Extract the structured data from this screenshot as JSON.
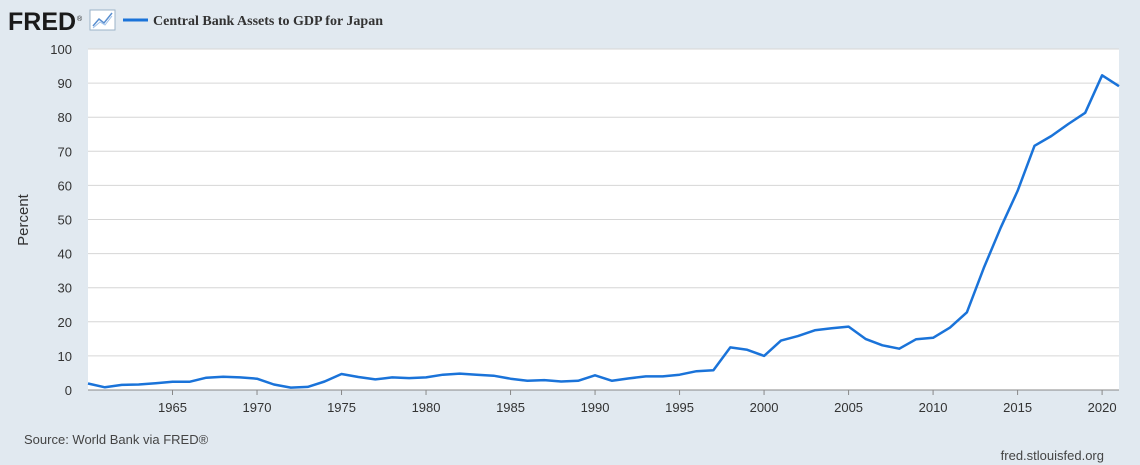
{
  "header": {
    "logo_text": "FRED",
    "logo_mark": "®",
    "legend_label": "Central Bank Assets to GDP for Japan",
    "series_color": "#1a73d9"
  },
  "footer": {
    "source": "Source: World Bank via FRED®",
    "site": "fred.stlouisfed.org"
  },
  "chart_data": {
    "type": "line",
    "ylabel": "Percent",
    "ylim": [
      0,
      100
    ],
    "xlim": [
      1960,
      2021
    ],
    "yticks": [
      0,
      10,
      20,
      30,
      40,
      50,
      60,
      70,
      80,
      90,
      100
    ],
    "xticks": [
      1965,
      1970,
      1975,
      1980,
      1985,
      1990,
      1995,
      2000,
      2005,
      2010,
      2015,
      2020
    ],
    "grid": true,
    "series": [
      {
        "name": "Central Bank Assets to GDP for Japan",
        "color": "#1a73d9",
        "x": [
          1960,
          1961,
          1962,
          1963,
          1964,
          1965,
          1966,
          1967,
          1968,
          1969,
          1970,
          1971,
          1972,
          1973,
          1974,
          1975,
          1976,
          1977,
          1978,
          1979,
          1980,
          1981,
          1982,
          1983,
          1984,
          1985,
          1986,
          1987,
          1988,
          1989,
          1990,
          1991,
          1992,
          1993,
          1994,
          1995,
          1996,
          1997,
          1998,
          1999,
          2000,
          2001,
          2002,
          2003,
          2004,
          2005,
          2006,
          2007,
          2008,
          2009,
          2010,
          2011,
          2012,
          2013,
          2014,
          2015,
          2016,
          2017,
          2018,
          2019,
          2020,
          2021
        ],
        "y": [
          1.9,
          0.8,
          1.5,
          1.6,
          2.0,
          2.4,
          2.4,
          3.6,
          3.9,
          3.7,
          3.3,
          1.6,
          0.7,
          0.9,
          2.5,
          4.7,
          3.8,
          3.1,
          3.7,
          3.5,
          3.7,
          4.5,
          4.8,
          4.5,
          4.2,
          3.3,
          2.7,
          2.9,
          2.5,
          2.7,
          4.3,
          2.7,
          3.4,
          4.0,
          4.0,
          4.5,
          5.5,
          5.8,
          12.5,
          11.8,
          10.0,
          14.5,
          15.8,
          17.5,
          18.1,
          18.6,
          15.0,
          13.1,
          12.1,
          14.9,
          15.3,
          18.3,
          22.8,
          35.8,
          47.6,
          58.4,
          71.6,
          74.5,
          78.0,
          81.3,
          92.3,
          89.1
        ]
      }
    ]
  }
}
